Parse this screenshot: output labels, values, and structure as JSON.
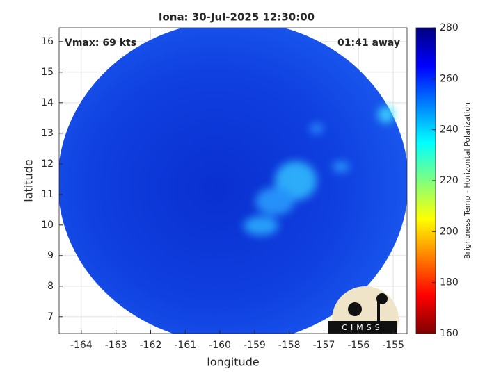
{
  "chart_data": {
    "type": "image",
    "title": "Iona: 30-Jul-2025 12:30:00",
    "annotations": [
      "Vmax: 69 kts",
      "01:41 away"
    ],
    "xlabel": "longitude",
    "ylabel": "latitude",
    "xlim": [
      -164.64,
      -154.6
    ],
    "xticks": [
      -164,
      -163,
      -162,
      -161,
      -160,
      -159,
      -158,
      -157,
      -156,
      -155
    ],
    "ylim": [
      6.45,
      16.45
    ],
    "yticks": [
      7,
      8,
      9,
      10,
      11,
      12,
      13,
      14,
      15,
      16
    ],
    "grid": true,
    "colorbar": {
      "label": "Brightness Temp - Horizontal Polarization",
      "colormap": "jet",
      "lim": [
        160,
        280
      ],
      "ticks": [
        160,
        180,
        200,
        220,
        240,
        260,
        280
      ]
    },
    "logo_text": "CIMSS"
  }
}
